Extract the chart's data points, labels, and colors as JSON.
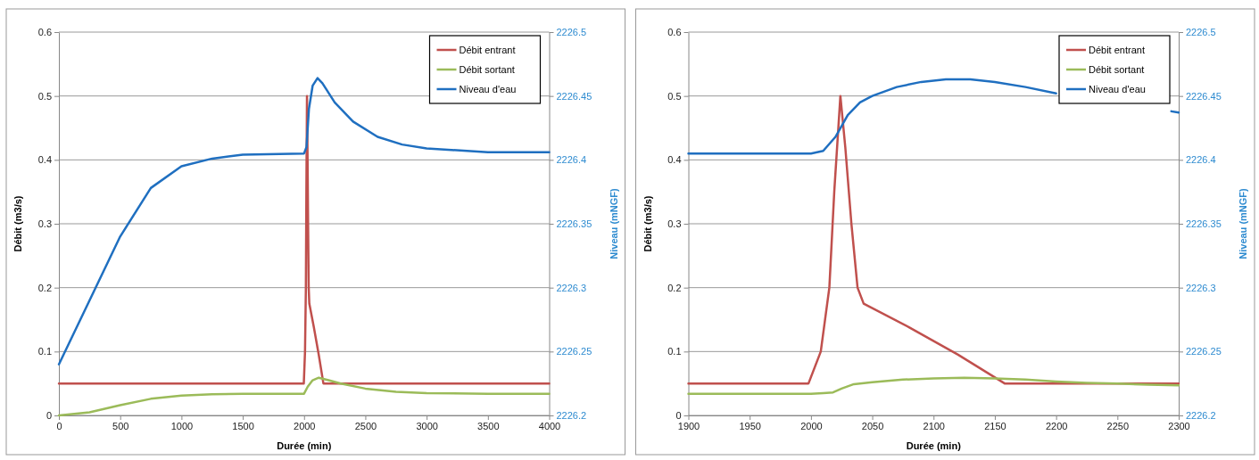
{
  "chart_data": [
    {
      "type": "line",
      "xlabel": "Durée (min)",
      "ylabel": "Débit (m3/s)",
      "y2label": "Niveau (mNGF)",
      "xlim": [
        0,
        4000
      ],
      "xticks": [
        0,
        500,
        1000,
        1500,
        2000,
        2500,
        3000,
        3500,
        4000
      ],
      "ylim": [
        0,
        0.6
      ],
      "yticks": [
        0,
        0.1,
        0.2,
        0.3,
        0.4,
        0.5,
        0.6
      ],
      "y2lim": [
        2226.2,
        2226.5
      ],
      "y2ticks": [
        2226.2,
        2226.25,
        2226.3,
        2226.35,
        2226.4,
        2226.45,
        2226.5
      ],
      "grid": "y",
      "legend": "top right",
      "series": [
        {
          "name": "Débit entrant",
          "color": "#c0504d",
          "x": [
            0,
            1998,
            2008,
            2015,
            2019,
            2024,
            2028,
            2033,
            2038,
            2043,
            2080,
            2120,
            2158,
            4000
          ],
          "values": [
            0.05,
            0.05,
            0.1,
            0.2,
            0.35,
            0.5,
            0.42,
            0.3,
            0.2,
            0.175,
            0.138,
            0.095,
            0.05,
            0.05
          ]
        },
        {
          "name": "Débit sortant",
          "color": "#9bbb59",
          "x": [
            0,
            250,
            500,
            750,
            1000,
            1250,
            1500,
            2000,
            2030,
            2070,
            2120,
            2200,
            2300,
            2500,
            2750,
            3000,
            3500,
            4000
          ],
          "values": [
            0,
            0.005,
            0.016,
            0.026,
            0.031,
            0.033,
            0.034,
            0.034,
            0.045,
            0.055,
            0.059,
            0.055,
            0.05,
            0.042,
            0.037,
            0.035,
            0.034,
            0.034
          ]
        },
        {
          "name": "Niveau d'eau",
          "color": "#1f6fc0",
          "axis": "y2",
          "x": [
            0,
            250,
            500,
            750,
            1000,
            1250,
            1500,
            2000,
            2020,
            2040,
            2070,
            2110,
            2150,
            2250,
            2400,
            2600,
            2800,
            3000,
            3500,
            4000
          ],
          "values": [
            2226.24,
            2226.29,
            2226.34,
            2226.378,
            2226.395,
            2226.401,
            2226.404,
            2226.405,
            2226.41,
            2226.44,
            2226.458,
            2226.464,
            2226.46,
            2226.445,
            2226.43,
            2226.418,
            2226.412,
            2226.409,
            2226.406,
            2226.406
          ]
        }
      ]
    },
    {
      "type": "line",
      "xlabel": "Durée (min)",
      "ylabel": "Débit (m3/s)",
      "y2label": "Niveau (mNGF)",
      "xlim": [
        1900,
        2300
      ],
      "xticks": [
        1900,
        1950,
        2000,
        2050,
        2100,
        2150,
        2200,
        2250,
        2300
      ],
      "ylim": [
        0,
        0.6
      ],
      "yticks": [
        0,
        0.1,
        0.2,
        0.3,
        0.4,
        0.5,
        0.6
      ],
      "y2lim": [
        2226.2,
        2226.5
      ],
      "y2ticks": [
        2226.2,
        2226.25,
        2226.3,
        2226.35,
        2226.4,
        2226.45,
        2226.5
      ],
      "grid": "y",
      "legend": "top right",
      "series": [
        {
          "name": "Débit entrant",
          "color": "#c0504d",
          "x": [
            1900,
            1998,
            2008,
            2015,
            2019,
            2024,
            2028,
            2033,
            2038,
            2043,
            2080,
            2120,
            2158,
            2300
          ],
          "values": [
            0.05,
            0.05,
            0.1,
            0.2,
            0.35,
            0.5,
            0.42,
            0.3,
            0.2,
            0.175,
            0.138,
            0.095,
            0.05,
            0.05
          ]
        },
        {
          "name": "Débit sortant",
          "color": "#9bbb59",
          "x": [
            1900,
            2000,
            2010,
            2018,
            2025,
            2035,
            2050,
            2075,
            2100,
            2125,
            2150,
            2175,
            2200,
            2225,
            2250,
            2275,
            2300
          ],
          "values": [
            0.034,
            0.034,
            0.035,
            0.036,
            0.042,
            0.049,
            0.052,
            0.056,
            0.058,
            0.059,
            0.058,
            0.056,
            0.053,
            0.051,
            0.05,
            0.048,
            0.047
          ]
        },
        {
          "name": "Niveau d'eau",
          "color": "#1f6fc0",
          "axis": "y2",
          "x": [
            1900,
            2000,
            2010,
            2020,
            2030,
            2040,
            2050,
            2070,
            2090,
            2110,
            2130,
            2150,
            2175,
            2200,
            2225,
            2250,
            2275,
            2294,
            2300
          ],
          "values": [
            2226.405,
            2226.405,
            2226.407,
            2226.418,
            2226.435,
            2226.445,
            2226.45,
            2226.457,
            2226.461,
            2226.463,
            2226.463,
            2226.461,
            2226.457,
            2226.452,
            null,
            null,
            null,
            2226.438,
            2226.437
          ]
        }
      ]
    }
  ]
}
